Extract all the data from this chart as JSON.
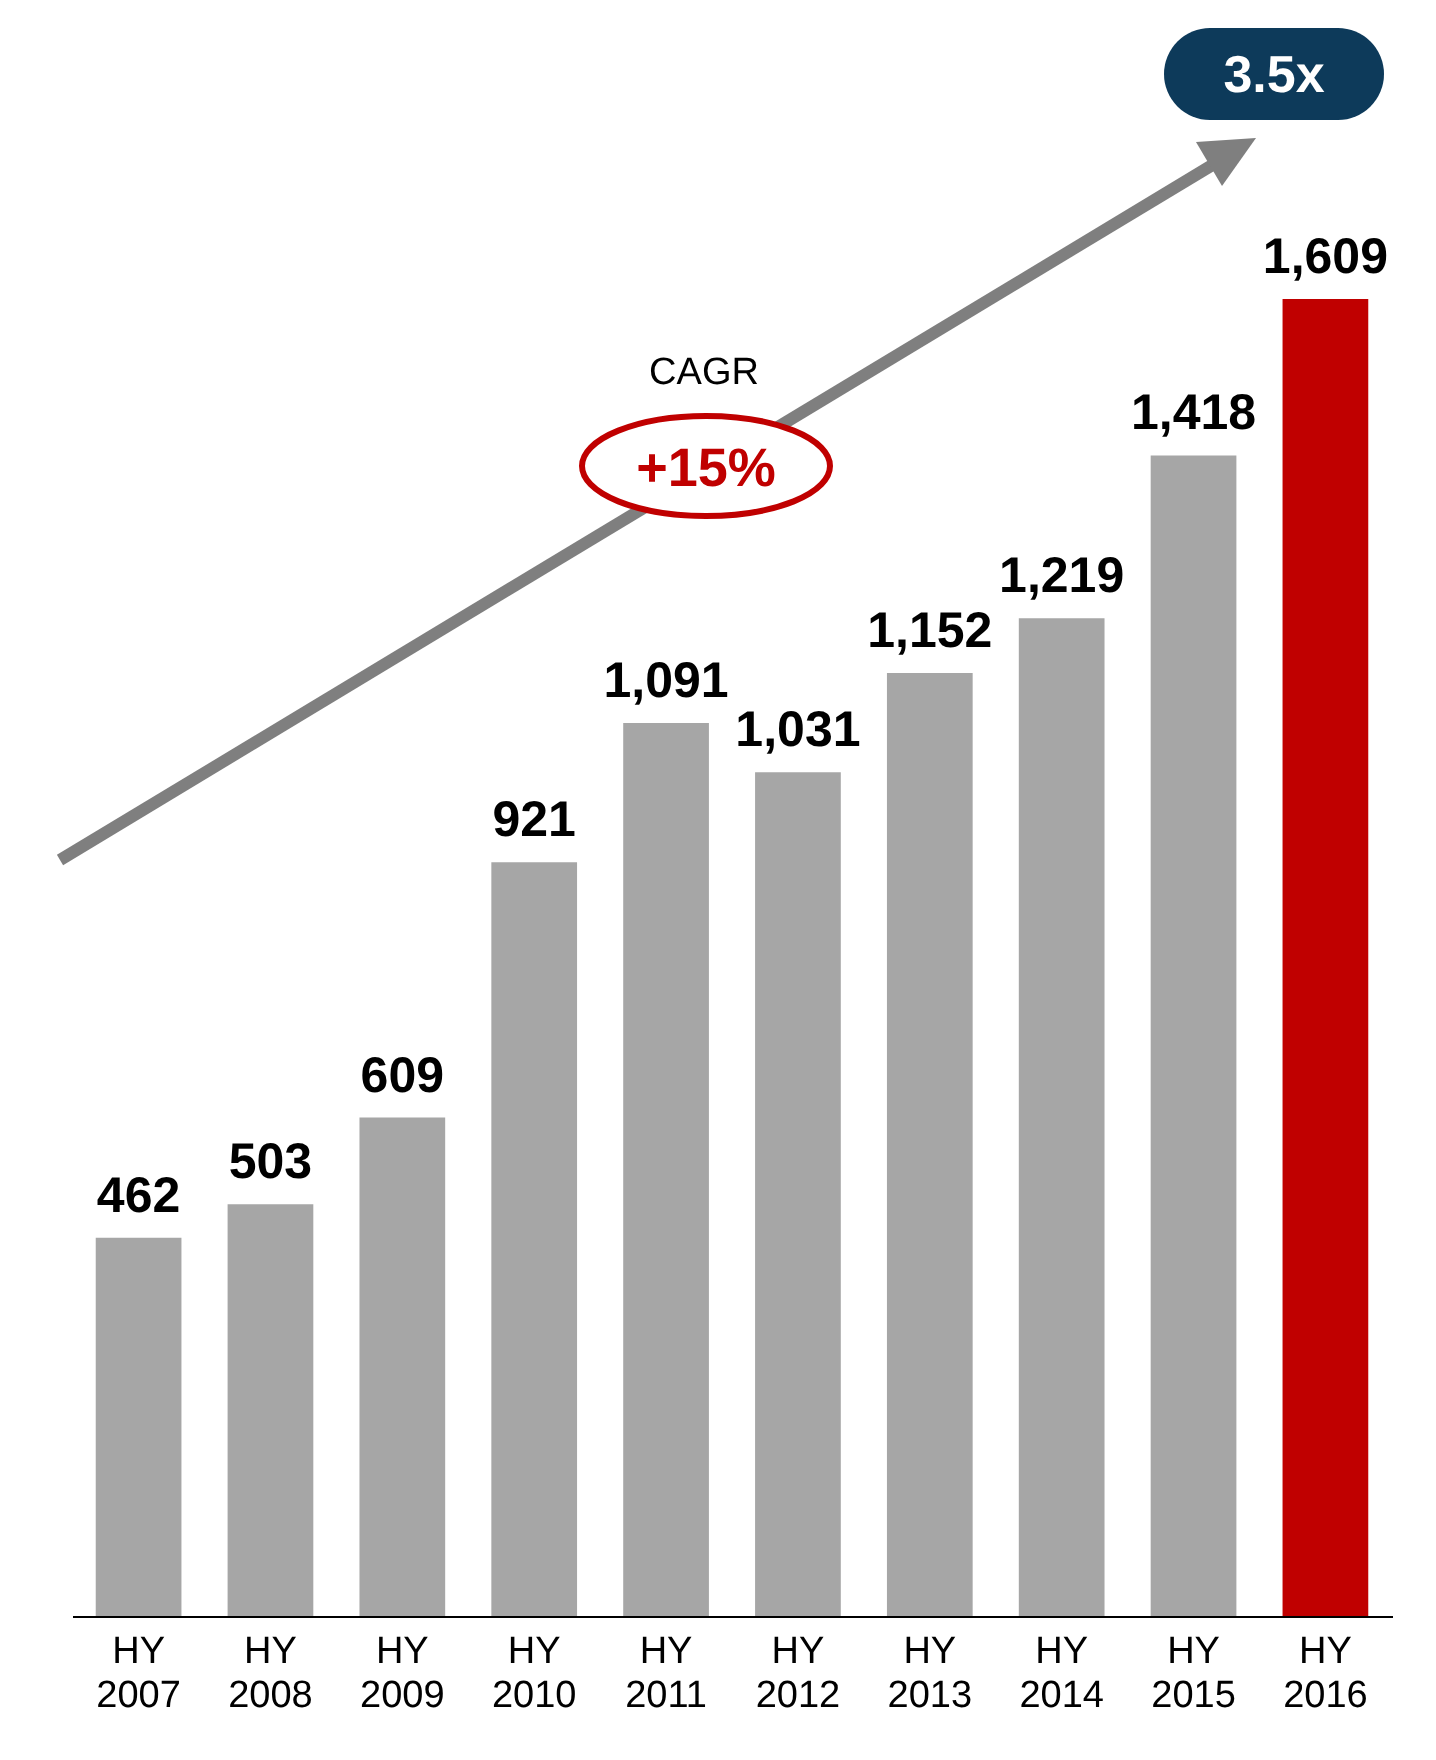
{
  "chart_data": {
    "type": "bar",
    "categories": [
      "HY 2007",
      "HY 2008",
      "HY 2009",
      "HY 2010",
      "HY 2011",
      "HY 2012",
      "HY 2013",
      "HY 2014",
      "HY 2015",
      "HY 2016"
    ],
    "values": [
      462,
      503,
      609,
      921,
      1091,
      1031,
      1152,
      1219,
      1418,
      1609
    ],
    "value_labels": [
      "462",
      "503",
      "609",
      "921",
      "1,091",
      "1,031",
      "1,152",
      "1,219",
      "1,418",
      "1,609"
    ],
    "colors": [
      "#a6a6a6",
      "#a6a6a6",
      "#a6a6a6",
      "#a6a6a6",
      "#a6a6a6",
      "#a6a6a6",
      "#a6a6a6",
      "#a6a6a6",
      "#a6a6a6",
      "#c00000"
    ],
    "annotations": [
      "CAGR",
      "+15%",
      "3.5x"
    ],
    "grid": false,
    "tick_labels": "x"
  }
}
